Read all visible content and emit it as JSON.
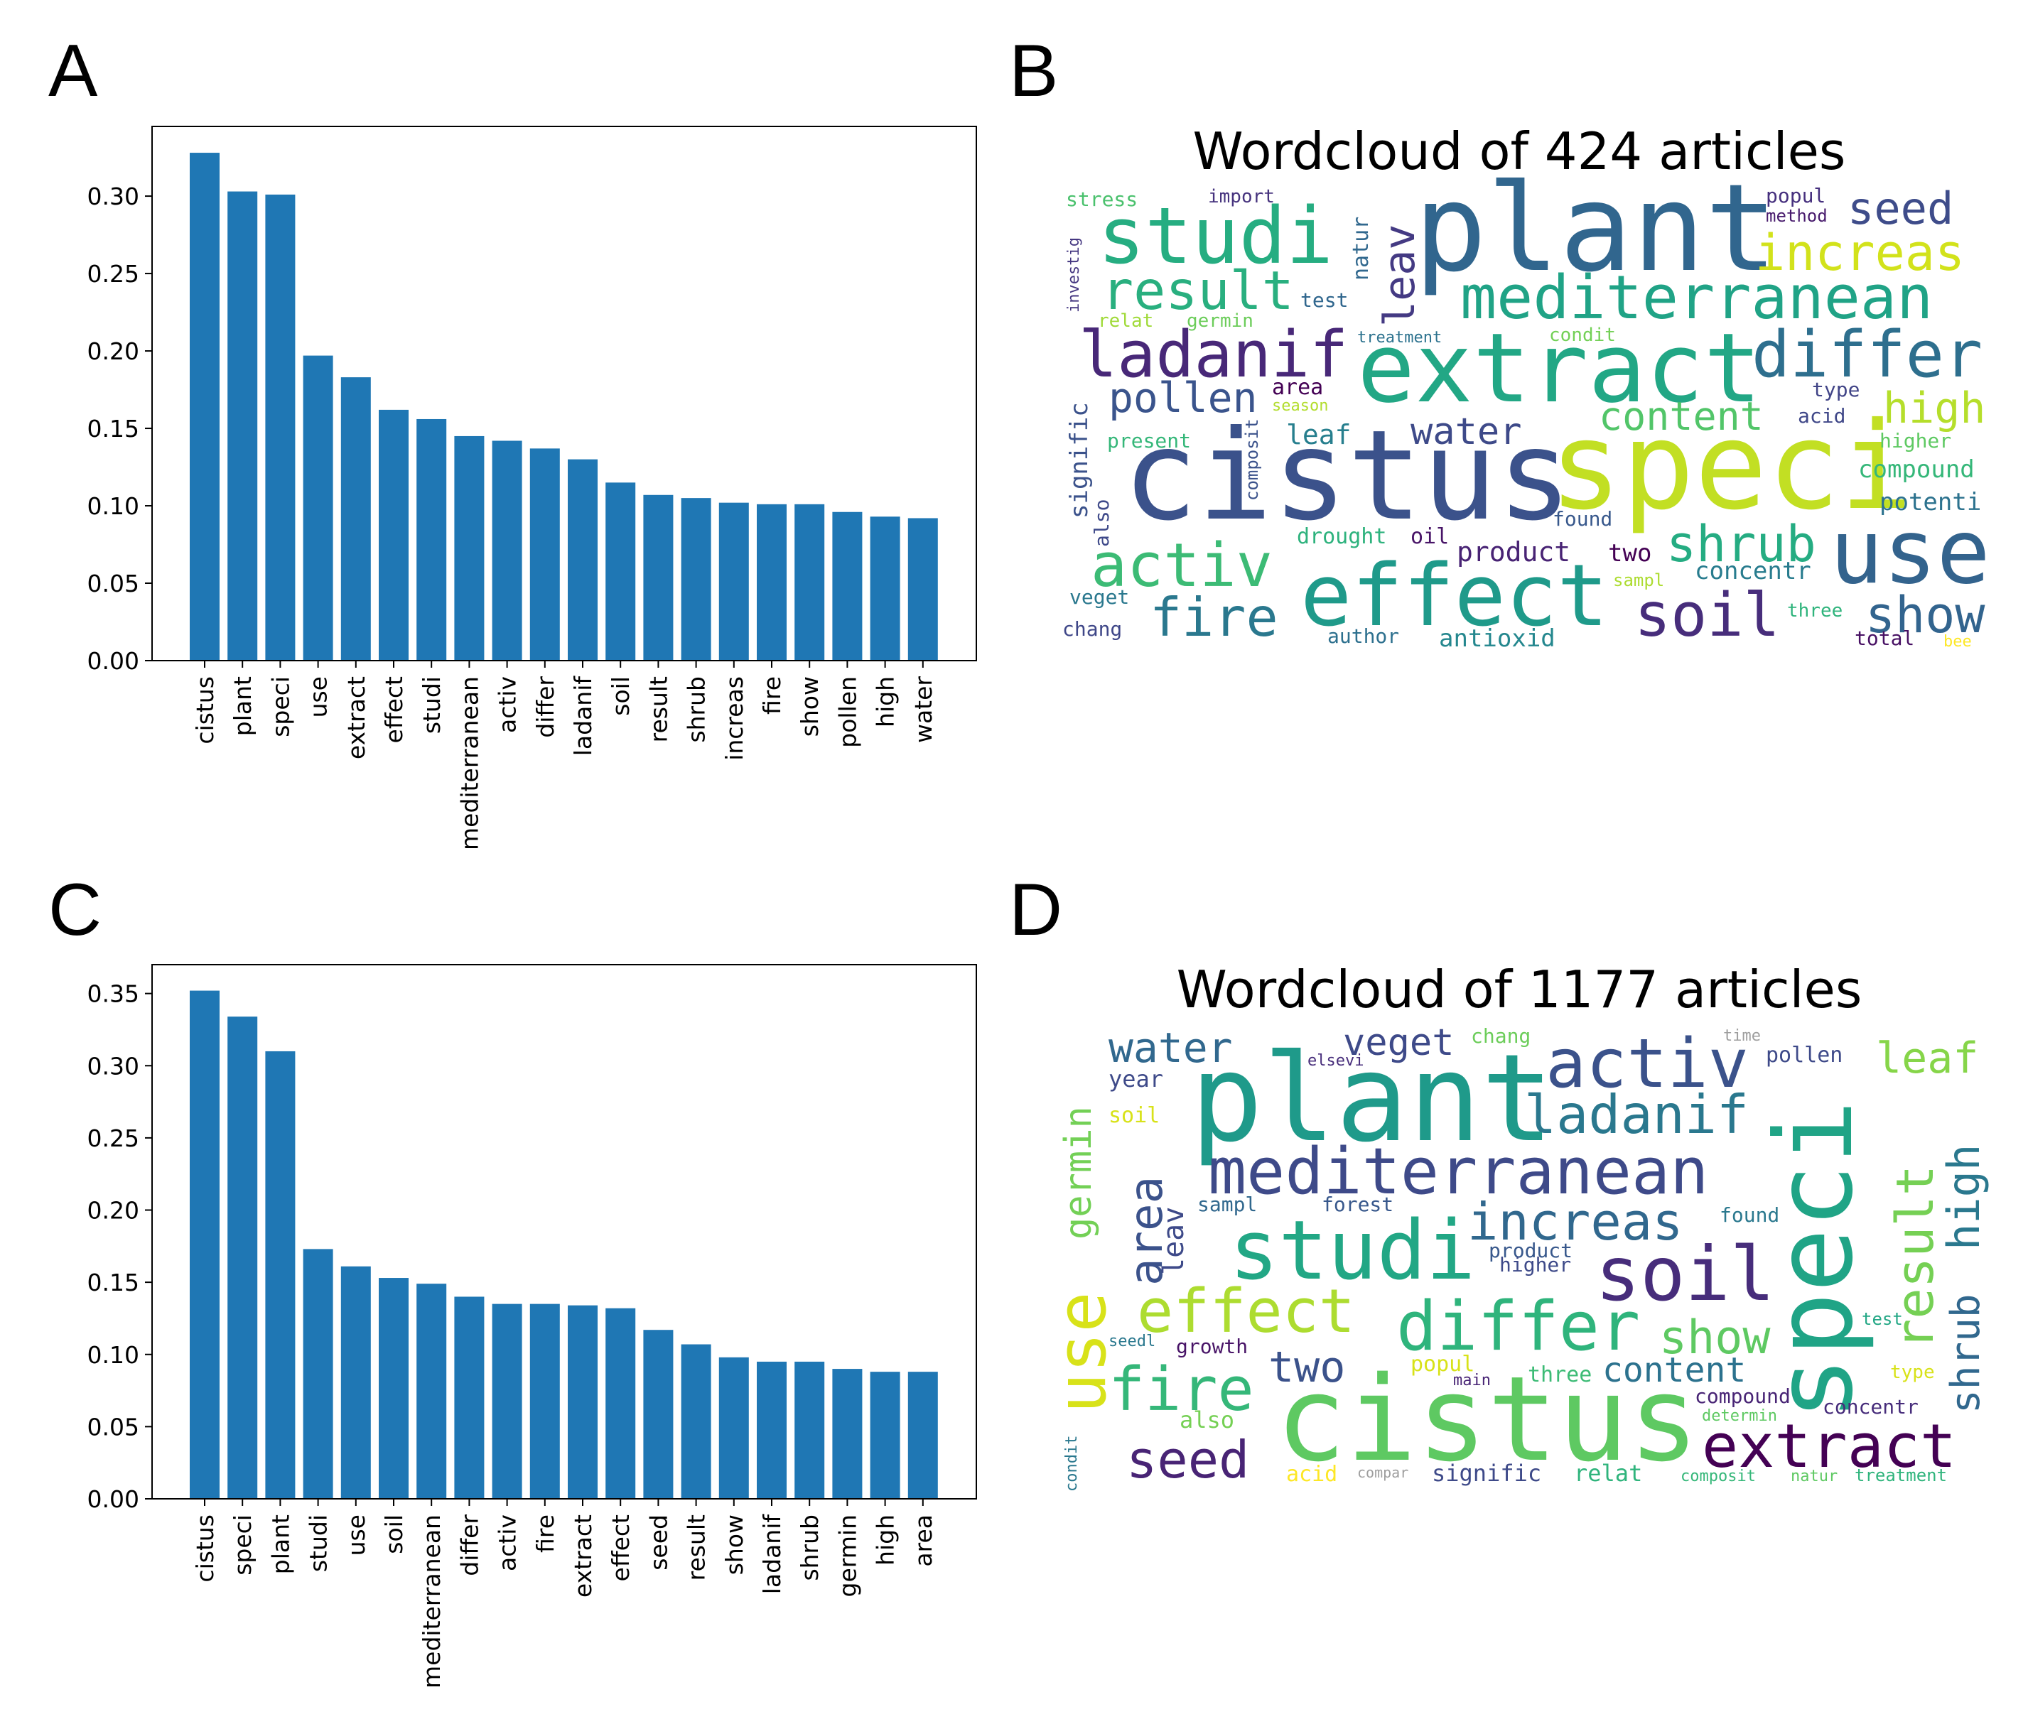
{
  "panels": [
    {
      "letter": "A",
      "chart": {
        "type": "bar",
        "title": "",
        "xlabel": "",
        "ylabel": "",
        "ylim": [
          0,
          0.345
        ],
        "yticks": [
          "0.00",
          "0.05",
          "0.10",
          "0.15",
          "0.20",
          "0.25",
          "0.30"
        ],
        "categories": [
          "cistus",
          "plant",
          "speci",
          "use",
          "extract",
          "effect",
          "studi",
          "mediterranean",
          "activ",
          "differ",
          "ladanif",
          "soil",
          "result",
          "shrub",
          "increas",
          "fire",
          "show",
          "pollen",
          "high",
          "water"
        ],
        "values": [
          0.328,
          0.303,
          0.301,
          0.197,
          0.183,
          0.162,
          0.156,
          0.145,
          0.142,
          0.137,
          0.13,
          0.115,
          0.107,
          0.105,
          0.102,
          0.101,
          0.101,
          0.096,
          0.093,
          0.092
        ],
        "bar_color": "#1f77b4"
      }
    },
    {
      "letter": "C",
      "chart": {
        "type": "bar",
        "title": "",
        "xlabel": "",
        "ylabel": "",
        "ylim": [
          0,
          0.37
        ],
        "yticks": [
          "0.00",
          "0.05",
          "0.10",
          "0.15",
          "0.20",
          "0.25",
          "0.30",
          "0.35"
        ],
        "categories": [
          "cistus",
          "speci",
          "plant",
          "studi",
          "use",
          "soil",
          "mediterranean",
          "differ",
          "activ",
          "fire",
          "extract",
          "effect",
          "seed",
          "result",
          "show",
          "ladanif",
          "shrub",
          "germin",
          "high",
          "area"
        ],
        "values": [
          0.352,
          0.334,
          0.31,
          0.173,
          0.161,
          0.153,
          0.149,
          0.14,
          0.135,
          0.135,
          0.134,
          0.132,
          0.117,
          0.107,
          0.098,
          0.095,
          0.095,
          0.09,
          0.088,
          0.088
        ],
        "bar_color": "#1f77b4"
      }
    },
    {
      "letter": "B",
      "wordcloud": {
        "title": "Wordcloud of 424 articles",
        "words": [
          {
            "text": "plant",
            "color": "#31668e"
          },
          {
            "text": "cistus",
            "color": "#3b528b"
          },
          {
            "text": "speci",
            "color": "#c2df23"
          },
          {
            "text": "extract",
            "color": "#22a785"
          },
          {
            "text": "effect",
            "color": "#1f9a8a"
          },
          {
            "text": "studi",
            "color": "#26ad81"
          },
          {
            "text": "use",
            "color": "#33638d"
          },
          {
            "text": "mediterranean",
            "color": "#20a386"
          },
          {
            "text": "ladanif",
            "color": "#482878"
          },
          {
            "text": "differ",
            "color": "#2e6f8e"
          },
          {
            "text": "activ",
            "color": "#3cbb75"
          },
          {
            "text": "result",
            "color": "#29af7f"
          },
          {
            "text": "soil",
            "color": "#472d7b"
          },
          {
            "text": "shrub",
            "color": "#25ac82"
          },
          {
            "text": "increas",
            "color": "#d2e21b"
          },
          {
            "text": "fire",
            "color": "#2a788e"
          },
          {
            "text": "show",
            "color": "#32648e"
          },
          {
            "text": "pollen",
            "color": "#3a548c"
          },
          {
            "text": "high",
            "color": "#b5de2b"
          },
          {
            "text": "water",
            "color": "#3e4a89"
          },
          {
            "text": "seed",
            "color": "#3e4c8a"
          },
          {
            "text": "content",
            "color": "#52c569"
          },
          {
            "text": "leav",
            "color": "#443a83"
          },
          {
            "text": "product",
            "color": "#482374"
          },
          {
            "text": "concentr",
            "color": "#287c8e"
          },
          {
            "text": "antioxid",
            "color": "#24878e"
          },
          {
            "text": "leaf",
            "color": "#277f8e"
          },
          {
            "text": "drought",
            "color": "#2db27d"
          },
          {
            "text": "stress",
            "color": "#4ac16d"
          },
          {
            "text": "import",
            "color": "#46337e"
          },
          {
            "text": "popul",
            "color": "#46307e"
          },
          {
            "text": "method",
            "color": "#481b6d"
          },
          {
            "text": "test",
            "color": "#31678e"
          },
          {
            "text": "treatment",
            "color": "#2c728e"
          },
          {
            "text": "condit",
            "color": "#73d056"
          },
          {
            "text": "relat",
            "color": "#a0da39"
          },
          {
            "text": "germin",
            "color": "#6ccd5a"
          },
          {
            "text": "natur",
            "color": "#31688e"
          },
          {
            "text": "area",
            "color": "#440154"
          },
          {
            "text": "season",
            "color": "#b2dd2d"
          },
          {
            "text": "present",
            "color": "#35b779"
          },
          {
            "text": "composit",
            "color": "#3b528b"
          },
          {
            "text": "signific",
            "color": "#3b528b"
          },
          {
            "text": "investig",
            "color": "#453781"
          },
          {
            "text": "acid",
            "color": "#3f4788"
          },
          {
            "text": "type",
            "color": "#414487"
          },
          {
            "text": "higher",
            "color": "#5ec962"
          },
          {
            "text": "compound",
            "color": "#35b779"
          },
          {
            "text": "potenti",
            "color": "#2c728e"
          },
          {
            "text": "found",
            "color": "#38588c"
          },
          {
            "text": "two",
            "color": "#440154"
          },
          {
            "text": "sampl",
            "color": "#addc30"
          },
          {
            "text": "three",
            "color": "#2fb47c"
          },
          {
            "text": "also",
            "color": "#3e4989"
          },
          {
            "text": "oil",
            "color": "#481467"
          },
          {
            "text": "veget",
            "color": "#2a788e"
          },
          {
            "text": "chang",
            "color": "#3f4788"
          },
          {
            "text": "author",
            "color": "#2d708e"
          },
          {
            "text": "total",
            "color": "#471063"
          },
          {
            "text": "bee",
            "color": "#fde725"
          }
        ]
      }
    },
    {
      "letter": "D",
      "wordcloud": {
        "title": "Wordcloud of 1177 articles",
        "words": [
          {
            "text": "plant",
            "color": "#1f9a8a"
          },
          {
            "text": "cistus",
            "color": "#5ec962"
          },
          {
            "text": "speci",
            "color": "#20a486"
          },
          {
            "text": "mediterranean",
            "color": "#3e4a89"
          },
          {
            "text": "studi",
            "color": "#22a785"
          },
          {
            "text": "activ",
            "color": "#3b528b"
          },
          {
            "text": "soil",
            "color": "#472d7b"
          },
          {
            "text": "extract",
            "color": "#440154"
          },
          {
            "text": "differ",
            "color": "#2fb47c"
          },
          {
            "text": "effect",
            "color": "#addc30"
          },
          {
            "text": "ladanif",
            "color": "#2a788e"
          },
          {
            "text": "use",
            "color": "#d8e219"
          },
          {
            "text": "fire",
            "color": "#35b779"
          },
          {
            "text": "seed",
            "color": "#482475"
          },
          {
            "text": "increas",
            "color": "#31688e"
          },
          {
            "text": "show",
            "color": "#5ec962"
          },
          {
            "text": "result",
            "color": "#75d054"
          },
          {
            "text": "high",
            "color": "#2a788e"
          },
          {
            "text": "shrub",
            "color": "#31688e"
          },
          {
            "text": "germin",
            "color": "#73d056"
          },
          {
            "text": "area",
            "color": "#3b528b"
          },
          {
            "text": "water",
            "color": "#31688e"
          },
          {
            "text": "leaf",
            "color": "#86d549"
          },
          {
            "text": "veget",
            "color": "#3e4a89"
          },
          {
            "text": "two",
            "color": "#3b528b"
          },
          {
            "text": "content",
            "color": "#2c728e"
          },
          {
            "text": "leav",
            "color": "#3e4a89"
          },
          {
            "text": "year",
            "color": "#3e4a89"
          },
          {
            "text": "soil",
            "color": "#d8e219"
          },
          {
            "text": "pollen",
            "color": "#3e4a89"
          },
          {
            "text": "chang",
            "color": "#6ccd5a"
          },
          {
            "text": "time",
            "color": "#9e9e9e"
          },
          {
            "text": "forest",
            "color": "#38588c"
          },
          {
            "text": "sampl",
            "color": "#31688e"
          },
          {
            "text": "found",
            "color": "#2a788e"
          },
          {
            "text": "product",
            "color": "#38588c"
          },
          {
            "text": "higher",
            "color": "#3e4a89"
          },
          {
            "text": "growth",
            "color": "#481467"
          },
          {
            "text": "popul",
            "color": "#d8e219"
          },
          {
            "text": "three",
            "color": "#3cbb75"
          },
          {
            "text": "also",
            "color": "#75d054"
          },
          {
            "text": "compound",
            "color": "#482475"
          },
          {
            "text": "concentr",
            "color": "#472d7b"
          },
          {
            "text": "acid",
            "color": "#fde725"
          },
          {
            "text": "signific",
            "color": "#3e4a89"
          },
          {
            "text": "relat",
            "color": "#2fb47c"
          },
          {
            "text": "composit",
            "color": "#35b779"
          },
          {
            "text": "natur",
            "color": "#5ec962"
          },
          {
            "text": "treatment",
            "color": "#2fb47c"
          },
          {
            "text": "test",
            "color": "#22a785"
          },
          {
            "text": "type",
            "color": "#d8e219"
          },
          {
            "text": "elsevi",
            "color": "#472d7b"
          },
          {
            "text": "main",
            "color": "#482475"
          },
          {
            "text": "condit",
            "color": "#2a788e"
          },
          {
            "text": "seedl",
            "color": "#2a788e"
          },
          {
            "text": "determin",
            "color": "#5ec962"
          },
          {
            "text": "compar",
            "color": "#9e9e9e"
          }
        ]
      }
    }
  ]
}
